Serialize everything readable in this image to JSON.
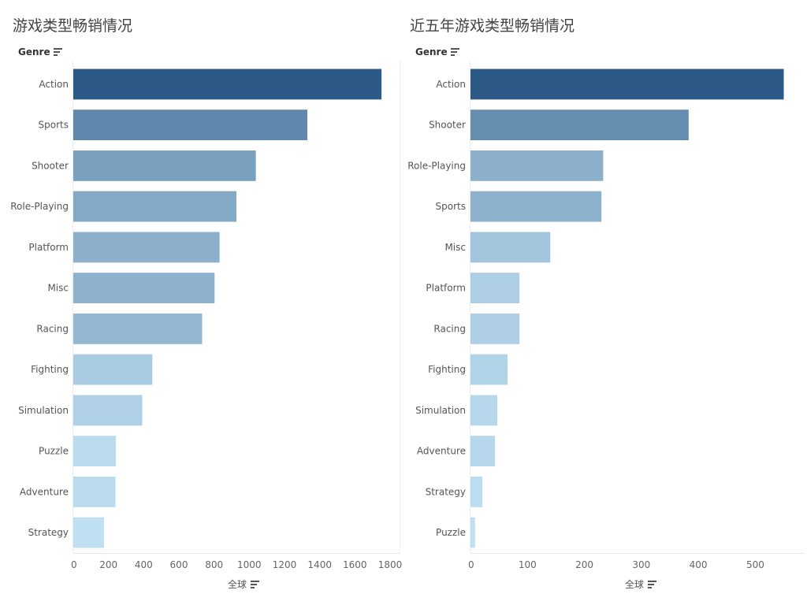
{
  "charts": {
    "left": {
      "title": "游戏类型畅销情况",
      "genre_label": "Genre",
      "axis_label": "全球"
    },
    "right": {
      "title": "近五年游戏类型畅销情况",
      "genre_label": "Genre",
      "axis_label": "全球"
    }
  },
  "chart_data": [
    {
      "type": "bar",
      "orientation": "horizontal",
      "title": "游戏类型畅销情况",
      "ylabel": "Genre",
      "xlabel": "全球",
      "categories": [
        "Action",
        "Sports",
        "Shooter",
        "Role-Playing",
        "Platform",
        "Misc",
        "Racing",
        "Fighting",
        "Simulation",
        "Puzzle",
        "Adventure",
        "Strategy"
      ],
      "values": [
        1751,
        1330,
        1037,
        927,
        831,
        803,
        732,
        449,
        392,
        242,
        239,
        174
      ],
      "xlim": [
        0,
        1800
      ],
      "xticks": [
        0,
        200,
        400,
        600,
        800,
        1000,
        1200,
        1400,
        1600,
        1800
      ],
      "color_scale": [
        "#2c5986",
        "#bfdff2"
      ]
    },
    {
      "type": "bar",
      "orientation": "horizontal",
      "title": "近五年游戏类型畅销情况",
      "ylabel": "Genre",
      "xlabel": "全球",
      "categories": [
        "Action",
        "Shooter",
        "Role-Playing",
        "Sports",
        "Misc",
        "Platform",
        "Racing",
        "Fighting",
        "Simulation",
        "Adventure",
        "Strategy",
        "Puzzle"
      ],
      "values": [
        550,
        383,
        233,
        230,
        140,
        86,
        86,
        65,
        47,
        43,
        21,
        8
      ],
      "xlim": [
        0,
        570
      ],
      "xticks": [
        0,
        100,
        200,
        300,
        400,
        500
      ],
      "color_scale": [
        "#2c5986",
        "#bfdff2"
      ]
    }
  ]
}
